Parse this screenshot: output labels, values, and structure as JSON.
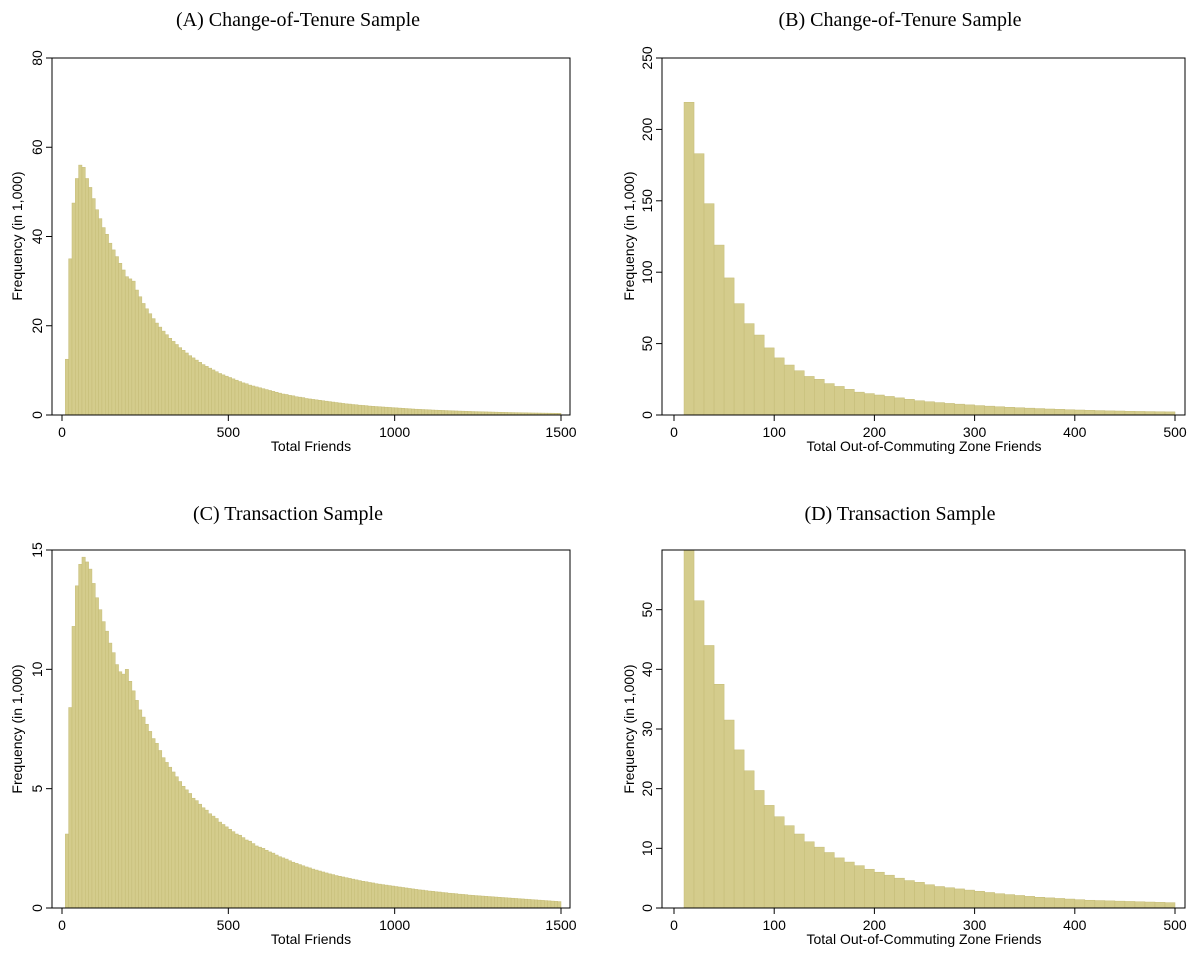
{
  "chart_data": [
    {
      "type": "bar",
      "title": "(A) Change-of-Tenure Sample",
      "xlabel": "Total Friends",
      "ylabel": "Frequency (in 1,000)",
      "xlim": [
        0,
        1500
      ],
      "ylim": [
        0,
        80
      ],
      "xticks": [
        "0",
        "500",
        "1000",
        "1500"
      ],
      "yticks": [
        "0",
        "20",
        "40",
        "60",
        "80"
      ],
      "bin_start": 10,
      "bin_width": 10,
      "values": [
        12.5,
        35,
        47.5,
        53,
        56,
        55.5,
        53,
        51,
        48.5,
        46,
        44,
        42,
        40.5,
        38.5,
        37,
        35.5,
        34,
        32.5,
        31,
        30.5,
        30,
        28,
        26.5,
        25,
        23.8,
        22.7,
        21.6,
        20.6,
        19.7,
        18.8,
        18,
        17.2,
        16.5,
        15.8,
        15.1,
        14.5,
        13.9,
        13.3,
        12.8,
        12.3,
        11.8,
        11.3,
        10.9,
        10.5,
        10.1,
        9.7,
        9.3,
        9.0,
        8.7,
        8.4,
        8.1,
        7.8,
        7.5,
        7.2,
        7.0,
        6.7,
        6.5,
        6.3,
        6.1,
        5.9,
        5.7,
        5.5,
        5.3,
        5.1,
        4.9,
        4.7,
        4.6,
        4.4,
        4.3,
        4.1,
        4.0,
        3.9,
        3.7,
        3.6,
        3.5,
        3.4,
        3.3,
        3.2,
        3.1,
        3.0,
        2.9,
        2.8,
        2.7,
        2.6,
        2.5,
        2.45,
        2.35,
        2.3,
        2.2,
        2.15,
        2.1,
        2.0,
        1.95,
        1.9,
        1.85,
        1.8,
        1.75,
        1.7,
        1.65,
        1.6,
        1.55,
        1.5,
        1.45,
        1.4,
        1.35,
        1.3,
        1.27,
        1.23,
        1.2,
        1.16,
        1.12,
        1.09,
        1.06,
        1.03,
        1.0,
        0.97,
        0.94,
        0.91,
        0.88,
        0.86,
        0.83,
        0.81,
        0.78,
        0.76,
        0.74,
        0.72,
        0.7,
        0.68,
        0.66,
        0.64,
        0.62,
        0.6,
        0.58,
        0.56,
        0.55,
        0.53,
        0.52,
        0.5,
        0.49,
        0.47,
        0.46,
        0.45,
        0.44,
        0.43,
        0.42,
        0.41,
        0.4,
        0.39,
        0.38
      ]
    },
    {
      "type": "bar",
      "title": "(B) Change-of-Tenure Sample",
      "xlabel": "Total Out-of-Commuting Zone Friends",
      "ylabel": "Frequency (in 1,000)",
      "xlim": [
        0,
        500
      ],
      "ylim": [
        0,
        250
      ],
      "xticks": [
        "0",
        "100",
        "200",
        "300",
        "400",
        "500"
      ],
      "yticks": [
        "0",
        "50",
        "100",
        "150",
        "200",
        "250"
      ],
      "bin_start": 10,
      "bin_width": 10,
      "values": [
        219,
        183,
        148,
        119,
        96,
        78,
        64,
        56,
        47,
        40,
        35,
        31,
        27,
        25,
        22,
        20,
        18,
        16,
        15,
        14,
        13,
        12,
        11,
        10,
        9.3,
        8.7,
        8.1,
        7.6,
        7.1,
        6.6,
        6.2,
        5.8,
        5.4,
        5.1,
        4.8,
        4.5,
        4.2,
        4.0,
        3.7,
        3.5,
        3.3,
        3.1,
        2.9,
        2.8,
        2.6,
        2.5,
        2.4,
        2.3,
        2.2
      ]
    },
    {
      "type": "bar",
      "title": "(C) Transaction Sample",
      "xlabel": "Total Friends",
      "ylabel": "Frequency (in 1,000)",
      "xlim": [
        0,
        1500
      ],
      "ylim": [
        0,
        15
      ],
      "xticks": [
        "0",
        "500",
        "1000",
        "1500"
      ],
      "yticks": [
        "0",
        "5",
        "10",
        "15"
      ],
      "bin_start": 10,
      "bin_width": 10,
      "values": [
        3.1,
        8.4,
        11.8,
        13.5,
        14.4,
        14.7,
        14.5,
        14.2,
        13.6,
        13.0,
        12.5,
        12.0,
        11.6,
        11.1,
        10.7,
        10.2,
        9.9,
        9.8,
        10.0,
        9.5,
        9.1,
        8.7,
        8.3,
        8.0,
        7.7,
        7.4,
        7.1,
        6.9,
        6.6,
        6.3,
        6.1,
        5.9,
        5.7,
        5.5,
        5.3,
        5.1,
        4.95,
        4.8,
        4.6,
        4.5,
        4.35,
        4.2,
        4.1,
        3.95,
        3.85,
        3.75,
        3.6,
        3.5,
        3.4,
        3.3,
        3.2,
        3.1,
        3.05,
        2.95,
        2.85,
        2.8,
        2.7,
        2.6,
        2.55,
        2.5,
        2.42,
        2.35,
        2.3,
        2.22,
        2.15,
        2.1,
        2.05,
        1.98,
        1.92,
        1.87,
        1.82,
        1.77,
        1.72,
        1.68,
        1.63,
        1.59,
        1.55,
        1.51,
        1.47,
        1.43,
        1.4,
        1.36,
        1.33,
        1.3,
        1.27,
        1.24,
        1.21,
        1.18,
        1.15,
        1.12,
        1.1,
        1.07,
        1.05,
        1.02,
        1.0,
        0.98,
        0.96,
        0.94,
        0.92,
        0.9,
        0.88,
        0.86,
        0.84,
        0.82,
        0.8,
        0.78,
        0.76,
        0.75,
        0.73,
        0.71,
        0.7,
        0.68,
        0.67,
        0.65,
        0.64,
        0.62,
        0.61,
        0.6,
        0.58,
        0.57,
        0.56,
        0.54,
        0.53,
        0.52,
        0.51,
        0.5,
        0.49,
        0.48,
        0.47,
        0.46,
        0.45,
        0.44,
        0.43,
        0.42,
        0.41,
        0.4,
        0.39,
        0.38,
        0.37,
        0.36,
        0.35,
        0.34,
        0.33,
        0.32,
        0.31,
        0.3,
        0.29,
        0.28,
        0.27
      ]
    },
    {
      "type": "bar",
      "title": "(D) Transaction Sample",
      "xlabel": "Total Out-of-Commuting Zone Friends",
      "ylabel": "Frequency (in 1,000)",
      "xlim": [
        0,
        500
      ],
      "ylim": [
        0,
        60
      ],
      "xticks": [
        "0",
        "100",
        "200",
        "300",
        "400",
        "500"
      ],
      "yticks": [
        "0",
        "10",
        "20",
        "30",
        "40",
        "50"
      ],
      "bin_start": 10,
      "bin_width": 10,
      "values": [
        60,
        51.5,
        44,
        37.5,
        31.5,
        26.5,
        23,
        19.7,
        17.2,
        15.3,
        13.8,
        12.4,
        11.1,
        10.2,
        9.3,
        8.4,
        7.7,
        7.1,
        6.5,
        6.0,
        5.5,
        5.0,
        4.6,
        4.3,
        3.9,
        3.6,
        3.4,
        3.2,
        3.0,
        2.8,
        2.6,
        2.4,
        2.25,
        2.1,
        1.95,
        1.8,
        1.7,
        1.6,
        1.5,
        1.4,
        1.3,
        1.25,
        1.2,
        1.15,
        1.1,
        1.05,
        1.0,
        0.95,
        0.9
      ]
    }
  ]
}
